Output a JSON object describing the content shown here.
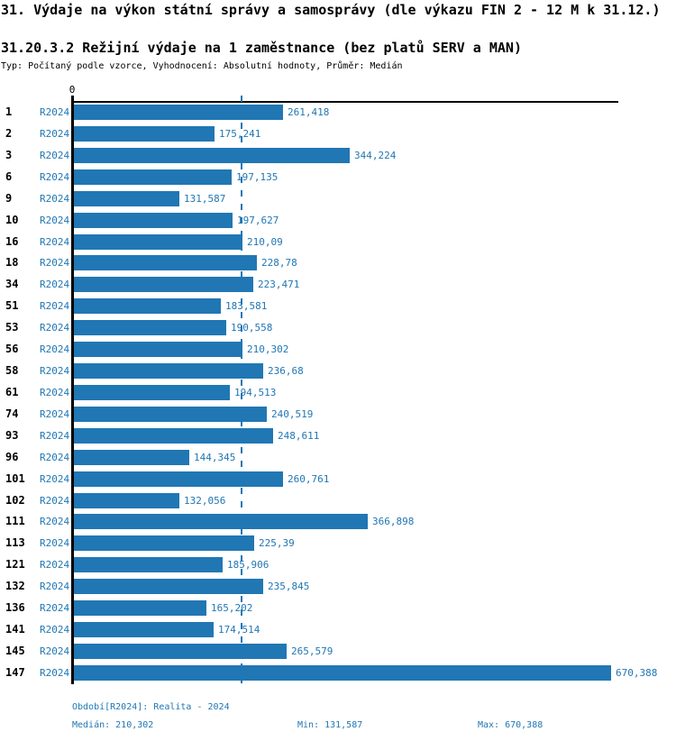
{
  "page": {
    "background": "#ffffff",
    "accent": "#2077b4"
  },
  "header": {
    "title": "31. Výdaje na výkon státní správy a samosprávy (dle výkazu FIN 2 - 12 M k 31.12.)",
    "subtitle": "31.20.3.2 Režijní výdaje na 1 zaměstnance (bez platů SERV a MAN)",
    "meta": "Typ: Počítaný podle vzorce, Vyhodnocení: Absolutní hodnoty, Průměr: Medián"
  },
  "chart_data": {
    "type": "bar",
    "orientation": "horizontal",
    "title": "31.20.3.2 Režijní výdaje na 1 zaměstnance (bez platů SERV a MAN)",
    "series_name": "R2024",
    "zero_label": "0",
    "categories": [
      "1",
      "2",
      "3",
      "6",
      "9",
      "10",
      "16",
      "18",
      "34",
      "51",
      "53",
      "56",
      "58",
      "61",
      "74",
      "93",
      "96",
      "101",
      "102",
      "111",
      "113",
      "121",
      "132",
      "136",
      "141",
      "145",
      "147"
    ],
    "values": [
      261.418,
      175.241,
      344.224,
      197.135,
      131.587,
      197.627,
      210.09,
      228.78,
      223.471,
      183.581,
      190.558,
      210.302,
      236.68,
      194.513,
      240.519,
      248.611,
      144.345,
      260.761,
      132.056,
      366.898,
      225.39,
      185.906,
      235.845,
      165.202,
      174.514,
      265.579,
      670.388
    ],
    "value_labels": [
      "261,418",
      "175,241",
      "344,224",
      "197,135",
      "131,587",
      "197,627",
      "210,09",
      "228,78",
      "223,471",
      "183,581",
      "190,558",
      "210,302",
      "236,68",
      "194,513",
      "240,519",
      "248,611",
      "144,345",
      "260,761",
      "132,056",
      "366,898",
      "225,39",
      "185,906",
      "235,845",
      "165,202",
      "174,514",
      "265,579",
      "670,388"
    ],
    "median": 210.302,
    "min": 131.587,
    "max": 670.388,
    "xlim": [
      0,
      679
    ],
    "grid": false,
    "legend_position": "none",
    "bar_color": "#2077b4",
    "median_line": {
      "value": 210.302,
      "style": "dashed",
      "color": "#2077b4"
    }
  },
  "footer": {
    "period": "Období[R2024]: Realita - 2024",
    "median_label": "Medián: 210,302",
    "min_label": "Min: 131,587",
    "max_label": "Max: 670,388"
  }
}
